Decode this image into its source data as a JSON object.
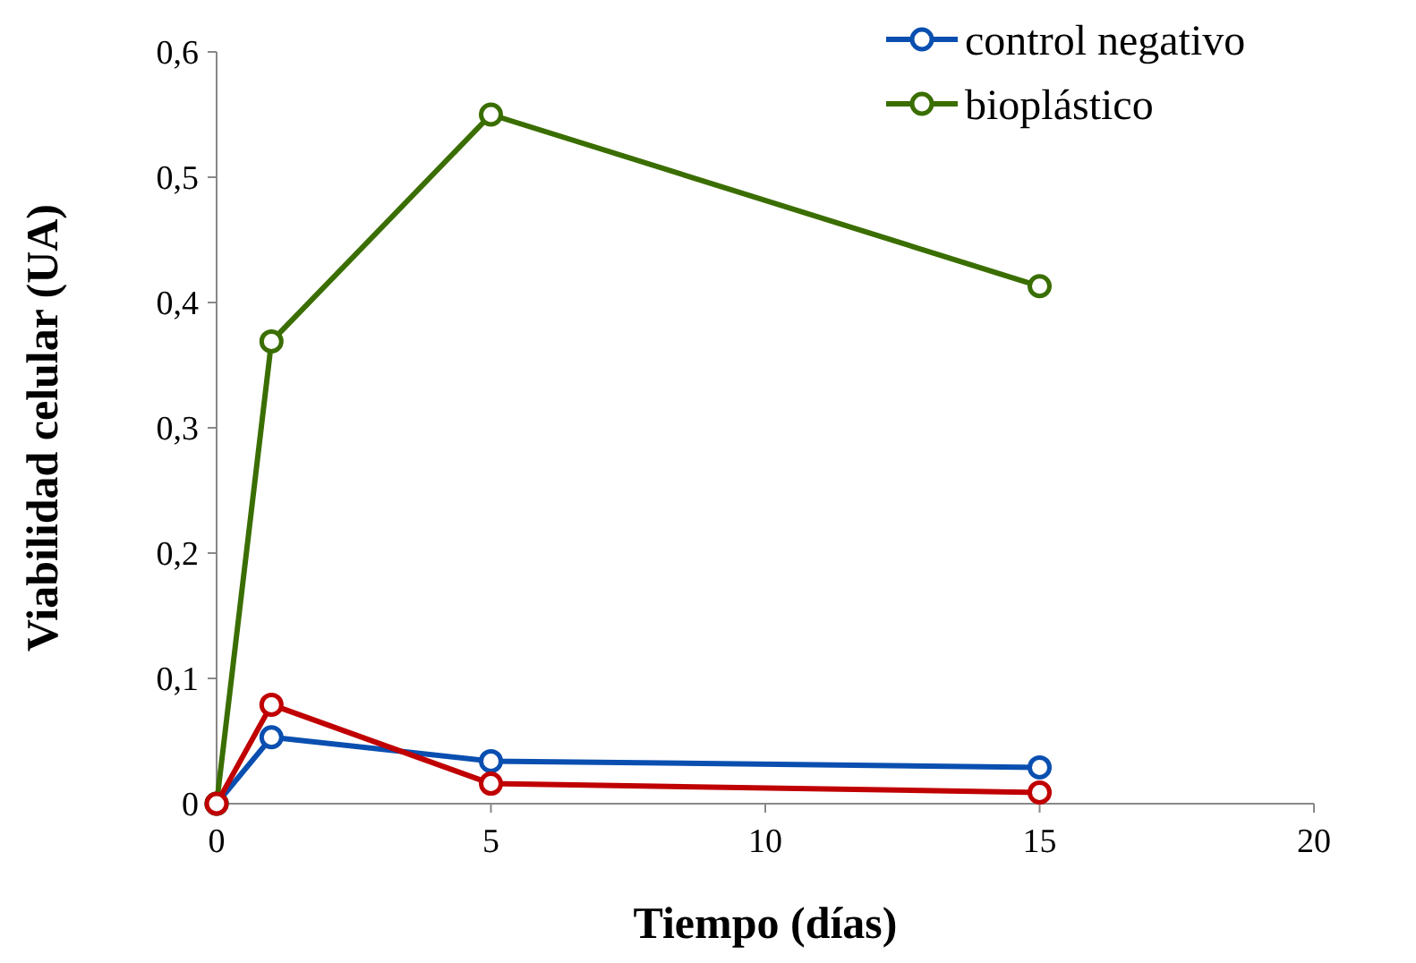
{
  "chart_data": {
    "type": "line",
    "xlabel": "Tiempo (días)",
    "ylabel": "Viabilidad celular (UA)",
    "x": [
      0,
      1,
      5,
      15
    ],
    "series": [
      {
        "name": "control negativo",
        "color": "#0a4fb0",
        "values": [
          0,
          0.053,
          0.034,
          0.029
        ]
      },
      {
        "name": "bioplástico",
        "color": "#3a6e00",
        "values": [
          0,
          0.369,
          0.55,
          0.413
        ]
      },
      {
        "color": "#c00000",
        "values": [
          0,
          0.079,
          0.016,
          0.009
        ]
      }
    ],
    "xlim": [
      0,
      20
    ],
    "xticks": [
      0,
      5,
      10,
      15,
      20
    ],
    "ylim": [
      0,
      0.6
    ],
    "yticks": [
      {
        "value": 0,
        "label": "0"
      },
      {
        "value": 0.1,
        "label": "0,1"
      },
      {
        "value": 0.2,
        "label": "0,2"
      },
      {
        "value": 0.3,
        "label": "0,3"
      },
      {
        "value": 0.4,
        "label": "0,4"
      },
      {
        "value": 0.5,
        "label": "0,5"
      },
      {
        "value": 0.6,
        "label": "0,6"
      }
    ],
    "marker": "circle",
    "line_style": "solid",
    "grid": false,
    "legend": "top right"
  }
}
